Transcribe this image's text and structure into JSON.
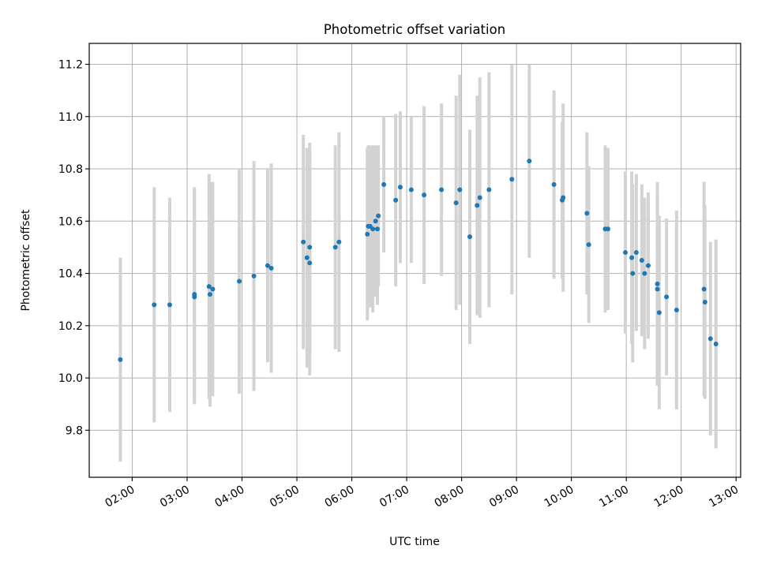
{
  "chart_data": {
    "type": "scatter",
    "title": "Photometric offset variation",
    "xlabel": "UTC time",
    "ylabel": "Photometric offset",
    "x_tick_labels": [
      "02:00",
      "03:00",
      "04:00",
      "05:00",
      "06:00",
      "07:00",
      "08:00",
      "09:00",
      "10:00",
      "11:00",
      "12:00",
      "13:00"
    ],
    "y_tick_labels": [
      "9.8",
      "10.0",
      "10.2",
      "10.4",
      "10.6",
      "10.8",
      "11.0",
      "11.2"
    ],
    "xlim": [
      "01:13",
      "13:05"
    ],
    "ylim": [
      9.62,
      11.28
    ],
    "grid": true,
    "colors": {
      "point": "#1f77b4",
      "errorbar": "#d3d3d3",
      "grid": "#b0b0b0"
    },
    "series": [
      {
        "x": [
          "01:47",
          "02:24",
          "02:41",
          "03:08",
          "03:08",
          "03:24",
          "03:25",
          "03:28",
          "03:57",
          "04:13",
          "04:28",
          "04:32",
          "05:07",
          "05:11",
          "05:14",
          "05:14",
          "05:42",
          "05:46",
          "06:17",
          "06:18",
          "06:20",
          "06:23",
          "06:26",
          "06:28",
          "06:29",
          "06:35",
          "06:48",
          "06:53",
          "07:05",
          "07:19",
          "07:38",
          "07:54",
          "07:58",
          "08:09",
          "08:17",
          "08:20",
          "08:30",
          "08:55",
          "09:14",
          "09:41",
          "09:50",
          "09:51",
          "10:17",
          "10:19",
          "10:37",
          "10:40",
          "10:59",
          "11:06",
          "11:07",
          "11:11",
          "11:17",
          "11:20",
          "11:24",
          "11:34",
          "11:34",
          "11:36",
          "11:44",
          "11:55",
          "12:25",
          "12:26",
          "12:32",
          "12:38"
        ],
        "y": [
          10.07,
          10.28,
          10.28,
          10.31,
          10.32,
          10.35,
          10.32,
          10.34,
          10.37,
          10.39,
          10.43,
          10.42,
          10.52,
          10.46,
          10.44,
          10.5,
          10.5,
          10.52,
          10.55,
          10.58,
          10.58,
          10.57,
          10.6,
          10.57,
          10.62,
          10.74,
          10.68,
          10.73,
          10.72,
          10.7,
          10.72,
          10.67,
          10.72,
          10.54,
          10.66,
          10.69,
          10.72,
          10.76,
          10.83,
          10.74,
          10.68,
          10.69,
          10.63,
          10.51,
          10.57,
          10.57,
          10.48,
          10.46,
          10.4,
          10.48,
          10.45,
          10.4,
          10.43,
          10.34,
          10.36,
          10.25,
          10.31,
          10.26,
          10.34,
          10.29,
          10.15,
          10.13
        ],
        "err": [
          0.39,
          0.45,
          0.41,
          0.41,
          0.41,
          0.43,
          0.43,
          0.41,
          0.43,
          0.44,
          0.37,
          0.4,
          0.41,
          0.42,
          0.43,
          0.4,
          0.39,
          0.42,
          0.33,
          0.31,
          0.31,
          0.32,
          0.29,
          0.29,
          0.27,
          0.26,
          0.33,
          0.29,
          0.28,
          0.34,
          0.33,
          0.41,
          0.44,
          0.41,
          0.42,
          0.46,
          0.45,
          0.44,
          0.37,
          0.36,
          0.3,
          0.36,
          0.31,
          0.3,
          0.32,
          0.31,
          0.31,
          0.33,
          0.34,
          0.3,
          0.29,
          0.29,
          0.28,
          0.37,
          0.39,
          0.37,
          0.3,
          0.38,
          0.41,
          0.37,
          0.37,
          0.4
        ]
      }
    ]
  }
}
